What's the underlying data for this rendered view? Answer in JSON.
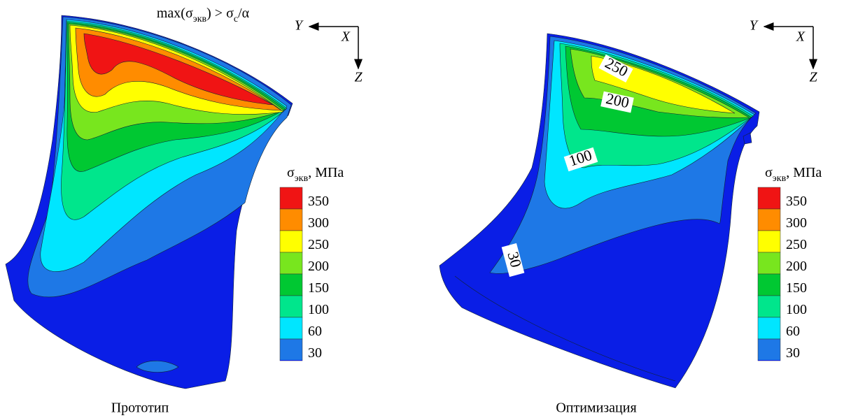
{
  "panels": [
    {
      "caption": "Прототип",
      "annotation": [
        "max(σ",
        "экв",
        ") > σ",
        "с",
        "/α"
      ],
      "axes": {
        "y": "Y",
        "x": "X",
        "z": "Z"
      },
      "legend": {
        "title": [
          "σ",
          "экв",
          ", МПа"
        ],
        "levels": [
          350,
          300,
          250,
          200,
          150,
          100,
          60,
          30
        ],
        "colors": [
          "#f01414",
          "#ff8c00",
          "#ffff00",
          "#78e61e",
          "#00c832",
          "#00e68c",
          "#00e6ff",
          "#1e78e6",
          "#0a1ee6"
        ]
      },
      "contour_labels": []
    },
    {
      "caption": "Оптимизация",
      "axes": {
        "y": "Y",
        "x": "X",
        "z": "Z"
      },
      "legend": {
        "title": [
          "σ",
          "экв",
          ", МПа"
        ],
        "levels": [
          350,
          300,
          250,
          200,
          150,
          100,
          60,
          30
        ],
        "colors": [
          "#f01414",
          "#ff8c00",
          "#ffff00",
          "#78e61e",
          "#00c832",
          "#00e68c",
          "#00e6ff",
          "#1e78e6",
          "#0a1ee6"
        ]
      },
      "contour_labels": [
        250,
        200,
        100,
        30
      ]
    }
  ]
}
